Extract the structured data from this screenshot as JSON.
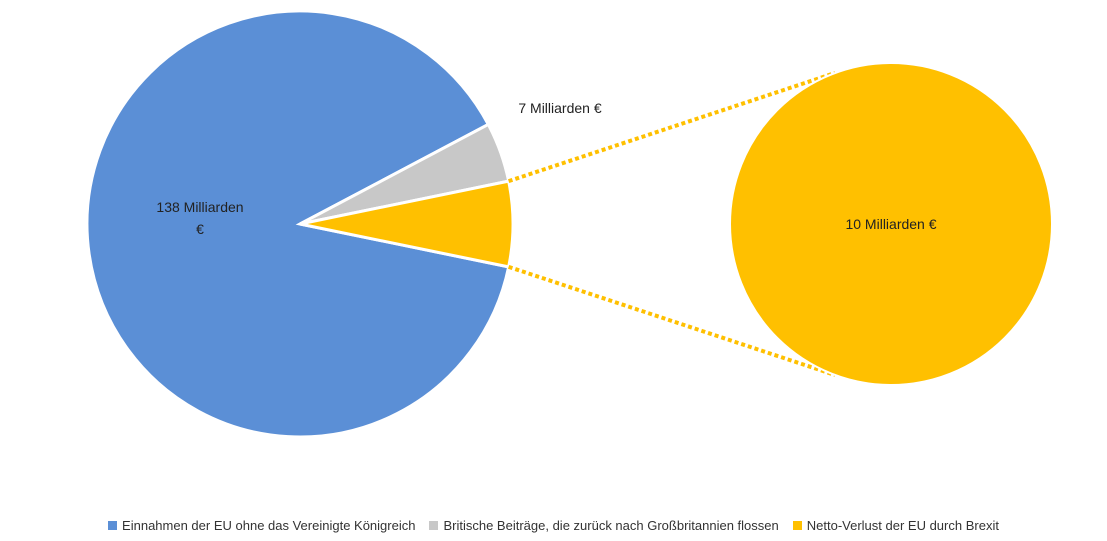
{
  "chart_data": {
    "type": "pie",
    "categories": [
      "Einnahmen der EU ohne das Vereinigte Königreich",
      "Britische Beiträge, die zurück nach Großbritannien flossen",
      "Netto-Verlust der EU durch Brexit"
    ],
    "values": [
      138,
      7,
      10
    ],
    "value_labels": [
      "138 Milliarden €",
      "7 Milliarden €",
      "10 Milliarden €"
    ],
    "colors": [
      "#5b8fd6",
      "#c8c8c8",
      "#ffc000"
    ],
    "legend": "bottom"
  }
}
